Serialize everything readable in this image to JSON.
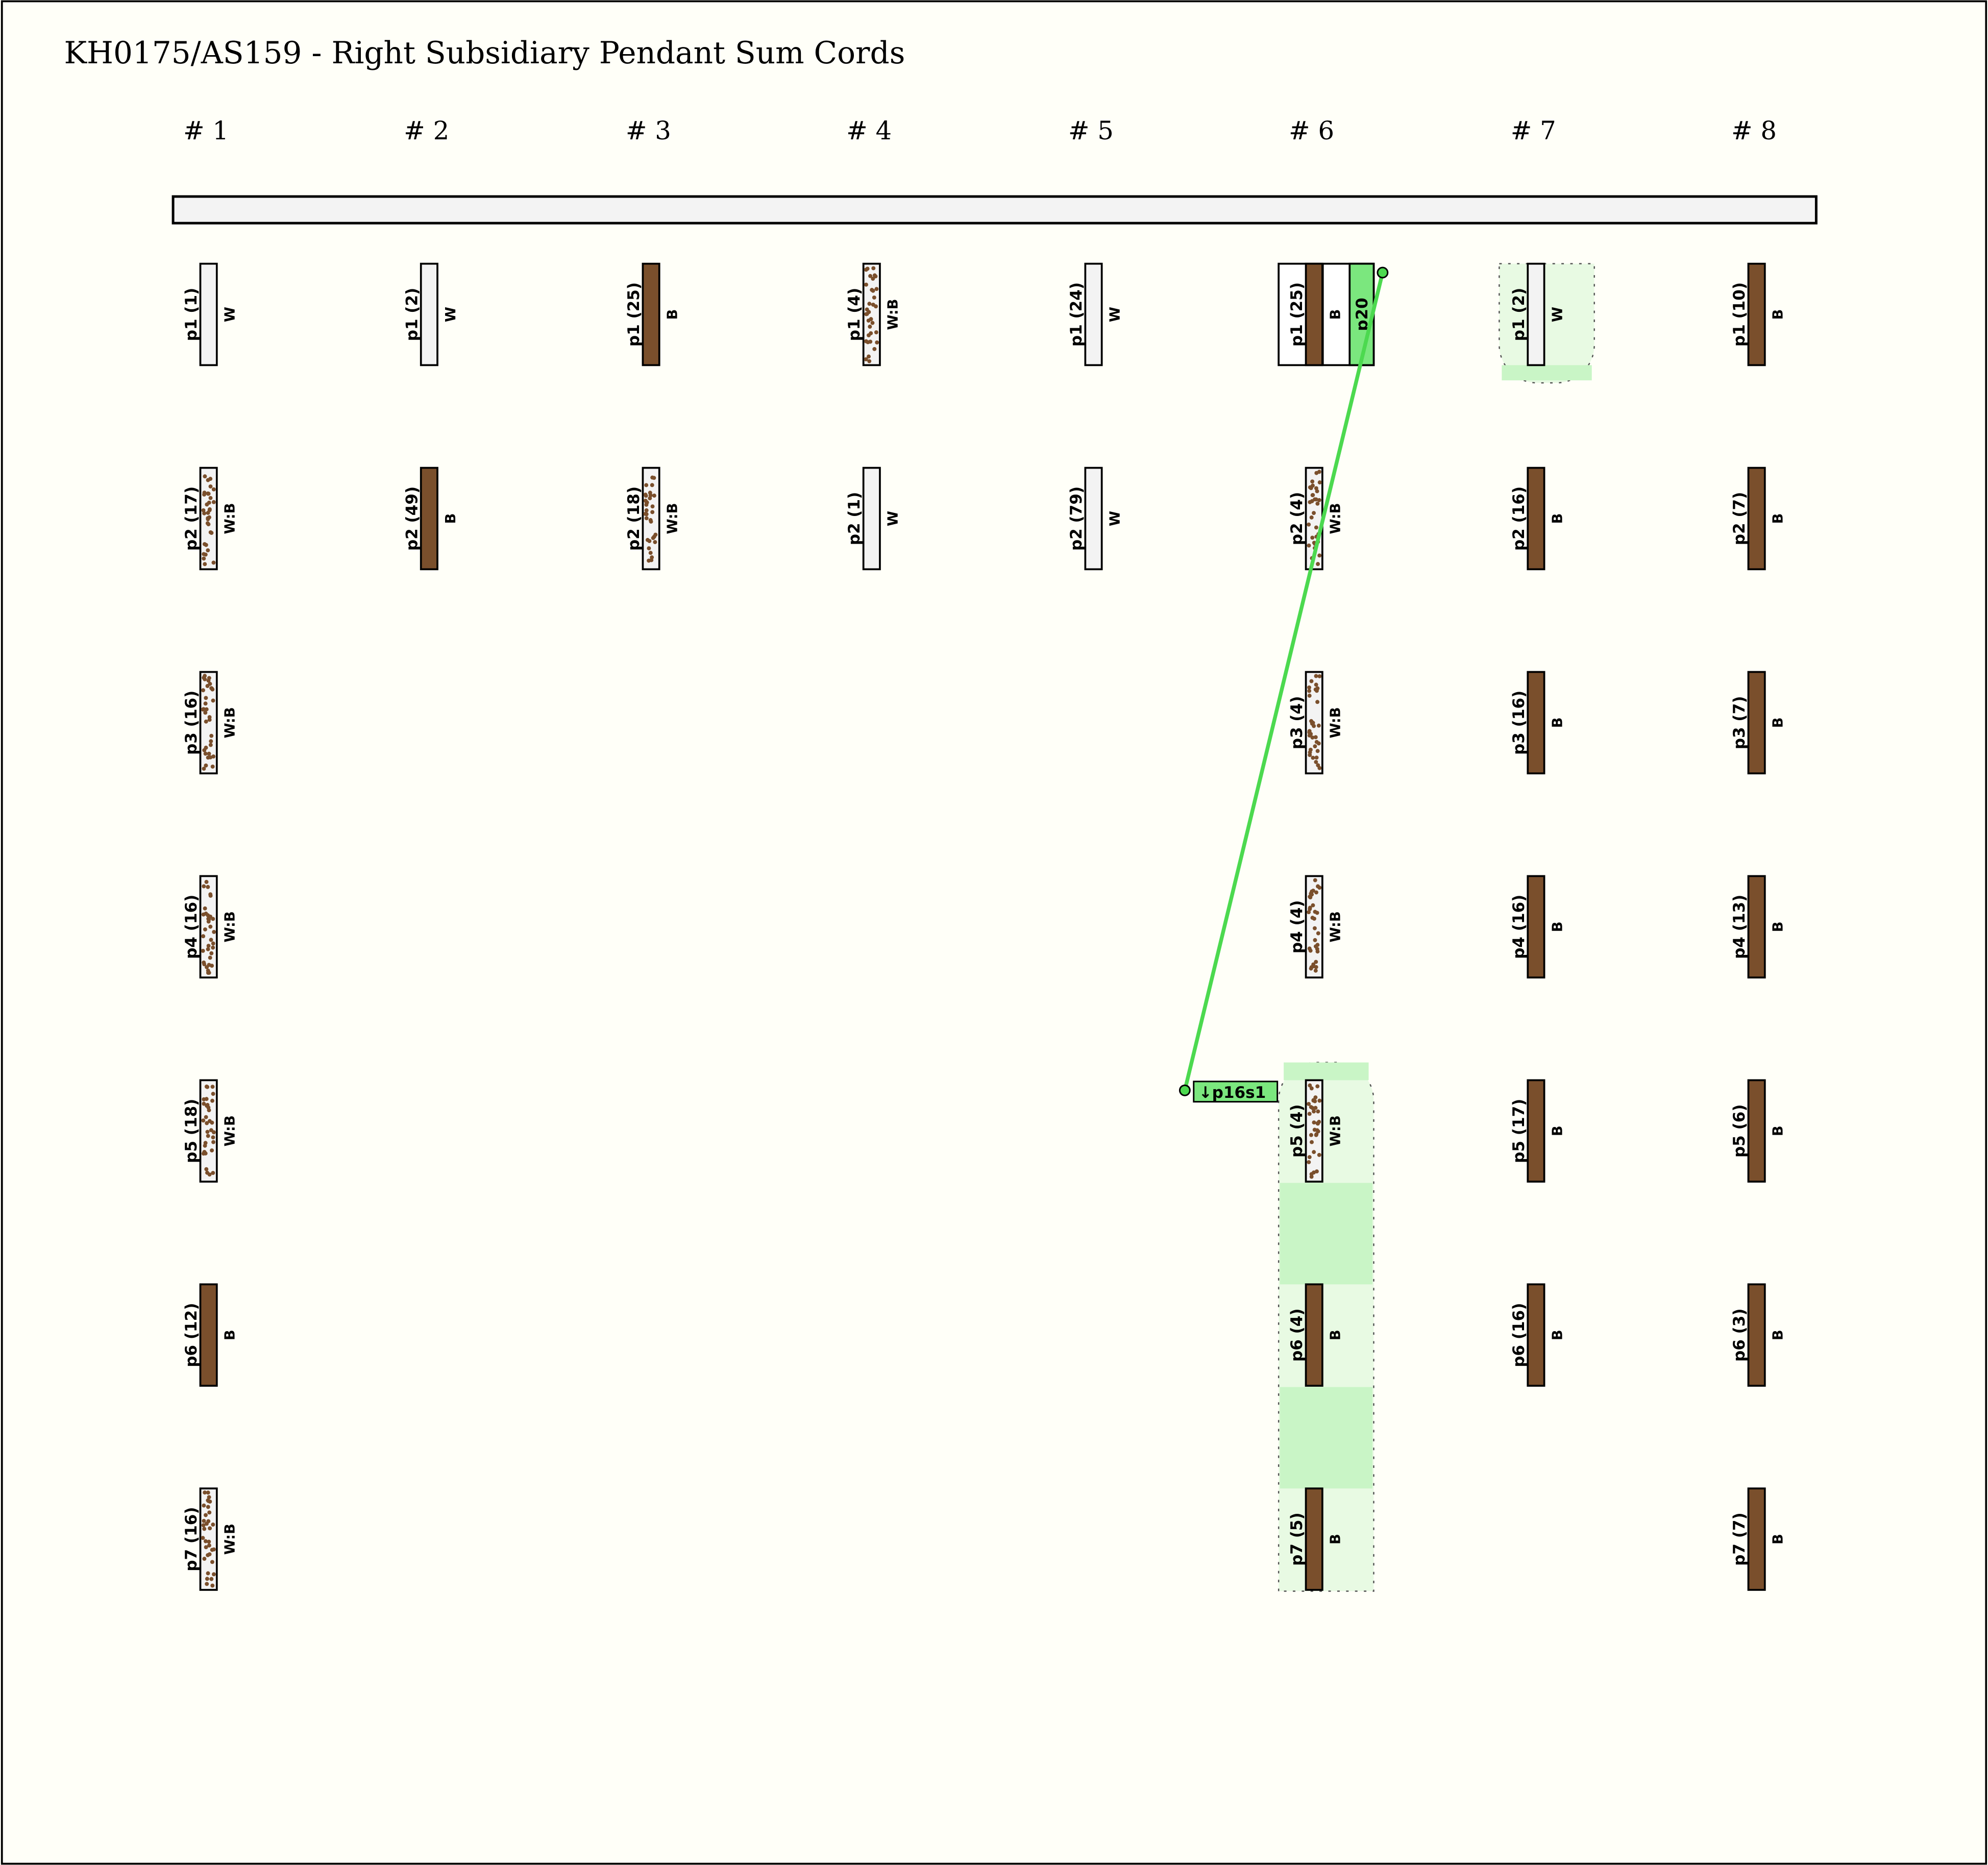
{
  "title": "KH0175/AS159 - Right Subsidiary Pendant Sum Cords",
  "colors": {
    "W": "#f3f3f3",
    "B": "#7a4f2c",
    "dot": "#7a4f2c",
    "highlight": "#e8fae3",
    "highlight_band": "#c9f5c6",
    "link": "#4cd94f",
    "tag": "#7be77e",
    "background": "#fffff8"
  },
  "groups": [
    {
      "label": "# 1",
      "cords": [
        {
          "label": "p1 (1)",
          "color": "W"
        },
        {
          "label": "p2 (17)",
          "color": "W:B"
        },
        {
          "label": "p3 (16)",
          "color": "W:B"
        },
        {
          "label": "p4 (16)",
          "color": "W:B"
        },
        {
          "label": "p5 (18)",
          "color": "W:B"
        },
        {
          "label": "p6 (12)",
          "color": "B"
        },
        {
          "label": "p7 (16)",
          "color": "W:B"
        }
      ]
    },
    {
      "label": "# 2",
      "cords": [
        {
          "label": "p1 (2)",
          "color": "W"
        },
        {
          "label": "p2 (49)",
          "color": "B"
        }
      ]
    },
    {
      "label": "# 3",
      "cords": [
        {
          "label": "p1 (25)",
          "color": "B"
        },
        {
          "label": "p2 (18)",
          "color": "W:B"
        }
      ]
    },
    {
      "label": "# 4",
      "cords": [
        {
          "label": "p1 (4)",
          "color": "W:B"
        },
        {
          "label": "p2 (1)",
          "color": "W"
        }
      ]
    },
    {
      "label": "# 5",
      "cords": [
        {
          "label": "p1 (24)",
          "color": "W"
        },
        {
          "label": "p2 (79)",
          "color": "W"
        }
      ]
    },
    {
      "label": "# 6",
      "cords": [
        {
          "label": "p1 (25)",
          "color": "B",
          "sum_tag": "p20"
        },
        {
          "label": "p2 (4)",
          "color": "W:B"
        },
        {
          "label": "p3 (4)",
          "color": "W:B"
        },
        {
          "label": "p4 (4)",
          "color": "W:B"
        },
        {
          "label": "p5 (4)",
          "color": "W:B",
          "highlighted": true
        },
        {
          "label": "p6 (4)",
          "color": "B",
          "highlighted": true
        },
        {
          "label": "p7 (5)",
          "color": "B",
          "highlighted": true
        }
      ]
    },
    {
      "label": "# 7",
      "cords": [
        {
          "label": "p1 (2)",
          "color": "W",
          "highlighted": true
        },
        {
          "label": "p2 (16)",
          "color": "B"
        },
        {
          "label": "p3 (16)",
          "color": "B"
        },
        {
          "label": "p4 (16)",
          "color": "B"
        },
        {
          "label": "p5 (17)",
          "color": "B"
        },
        {
          "label": "p6 (16)",
          "color": "B"
        }
      ]
    },
    {
      "label": "# 8",
      "cords": [
        {
          "label": "p1 (10)",
          "color": "B"
        },
        {
          "label": "p2 (7)",
          "color": "B"
        },
        {
          "label": "p3 (7)",
          "color": "B"
        },
        {
          "label": "p4 (13)",
          "color": "B"
        },
        {
          "label": "p5 (6)",
          "color": "B"
        },
        {
          "label": "p6 (3)",
          "color": "B"
        },
        {
          "label": "p7 (7)",
          "color": "B"
        }
      ]
    }
  ],
  "sum_link": {
    "source_tag": "p20",
    "target_label": "↓p16s1"
  }
}
